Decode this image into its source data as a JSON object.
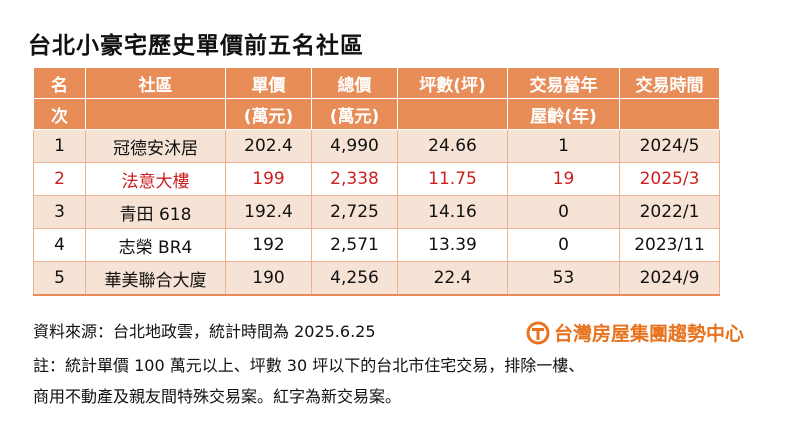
{
  "title": "台北小豪宅歷史單價前五名社區",
  "table": {
    "headers": [
      {
        "line1": "名",
        "line2": "次"
      },
      {
        "line1": "社區",
        "line2": ""
      },
      {
        "line1": "單價",
        "line2": "(萬元)"
      },
      {
        "line1": "總價",
        "line2": "(萬元)"
      },
      {
        "line1": "坪數(坪)",
        "line2": ""
      },
      {
        "line1": "交易當年",
        "line2": "屋齡(年)"
      },
      {
        "line1": "交易時間",
        "line2": ""
      }
    ],
    "rows": [
      {
        "rank": "1",
        "community": "冠德安沐居",
        "unit_price": "202.4",
        "total_price": "4,990",
        "area": "24.66",
        "age": "1",
        "date": "2024/5",
        "is_new": false
      },
      {
        "rank": "2",
        "community": "法意大樓",
        "unit_price": "199",
        "total_price": "2,338",
        "area": "11.75",
        "age": "19",
        "date": "2025/3",
        "is_new": true
      },
      {
        "rank": "3",
        "community": "青田 618",
        "unit_price": "192.4",
        "total_price": "2,725",
        "area": "14.16",
        "age": "0",
        "date": "2022/1",
        "is_new": false
      },
      {
        "rank": "4",
        "community": "志榮 BR4",
        "unit_price": "192",
        "total_price": "2,571",
        "area": "13.39",
        "age": "0",
        "date": "2023/11",
        "is_new": false
      },
      {
        "rank": "5",
        "community": "華美聯合大廈",
        "unit_price": "190",
        "total_price": "4,256",
        "area": "22.4",
        "age": "53",
        "date": "2024/9",
        "is_new": false
      }
    ]
  },
  "source": "資料來源：台北地政雲，統計時間為 2025.6.25",
  "logo": {
    "text": "台灣房屋集團趨勢中心",
    "accent": "#e8731e",
    "icon": "taiwan-realty-logo-icon"
  },
  "note": {
    "line1": "註：統計單價 100 萬元以上、坪數 30 坪以下的台北市住宅交易，排除一樓、",
    "line2": "商用不動產及親友間特殊交易案。紅字為新交易案。"
  },
  "colors": {
    "header_bg": "#e88c58",
    "row_band": "#f7e3d5",
    "new_text": "#cc1f1f"
  }
}
